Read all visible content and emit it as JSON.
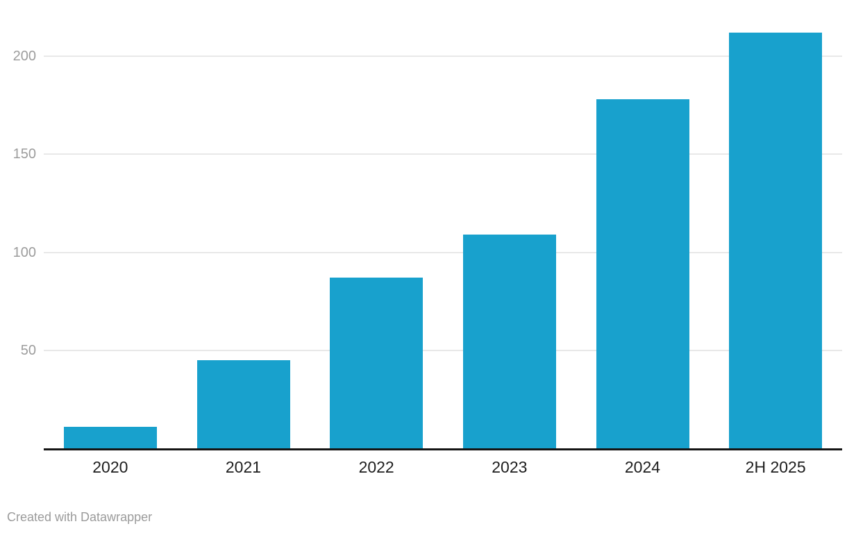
{
  "chart_data": {
    "type": "bar",
    "title": "",
    "xlabel": "",
    "ylabel": "",
    "categories": [
      "2020",
      "2021",
      "2022",
      "2023",
      "2024",
      "2H 2025"
    ],
    "values": [
      11,
      45,
      87,
      109,
      178,
      212
    ],
    "ylim": [
      0,
      215
    ],
    "yticks": [
      50,
      100,
      150,
      200
    ],
    "grid": true,
    "legend": "none",
    "colors": {
      "bar": "#18a1cd",
      "gridline": "#e8e8e8",
      "axis_line": "#151515",
      "y_tick_text": "#9c9c9c",
      "x_tick_text": "#1d1d1d",
      "footer_text": "#9b9b9b"
    }
  },
  "footer": {
    "attribution": "Created with Datawrapper"
  }
}
